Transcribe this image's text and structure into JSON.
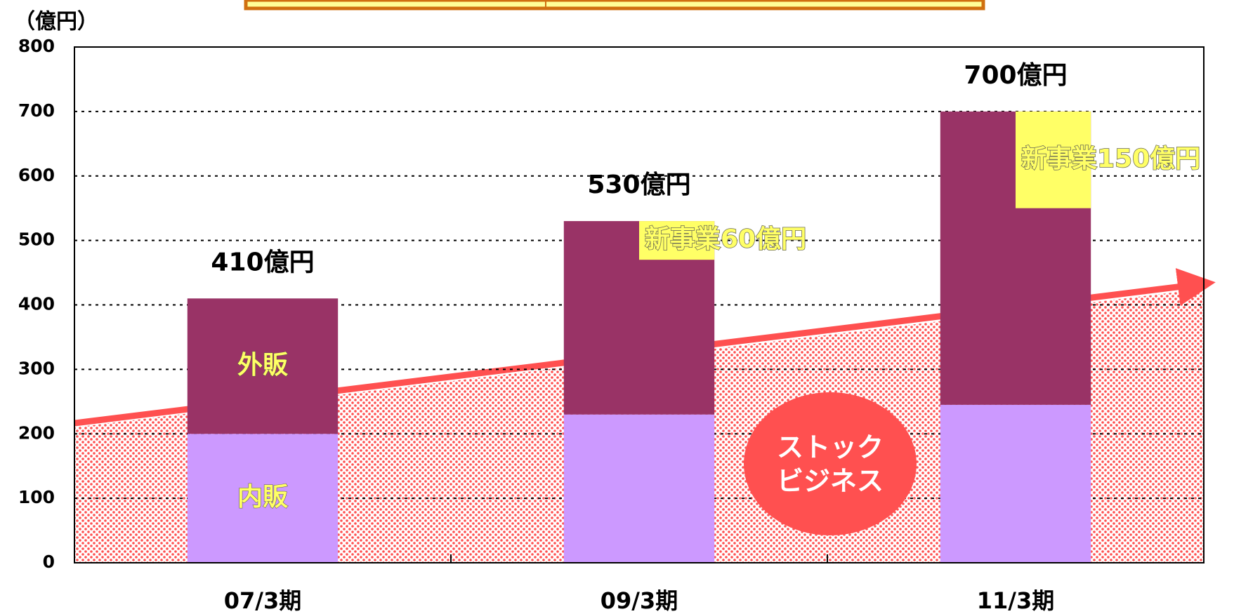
{
  "chart_data": {
    "type": "bar",
    "stacked": true,
    "ylabel": "（億円）",
    "categories": [
      "07/3期",
      "09/3期",
      "11/3期"
    ],
    "series": [
      {
        "name": "内販",
        "color": "#cc99ff",
        "values": [
          200,
          230,
          245
        ]
      },
      {
        "name": "外販",
        "color": "#993366",
        "values": [
          210,
          300,
          455
        ]
      }
    ],
    "new_business": {
      "color": "#ffff66",
      "values": [
        null,
        60,
        150
      ],
      "value_labels": [
        null,
        "新事業60億円",
        "新事業150億円"
      ]
    },
    "totals": {
      "values": [
        410,
        530,
        700
      ],
      "value_labels": [
        "410億円",
        "530億円",
        "700億円"
      ]
    },
    "stock": {
      "label": [
        "ストック",
        "ビジネス"
      ],
      "values": [
        210,
        425
      ],
      "color": "#ff5050"
    },
    "ylim": [
      0,
      800
    ],
    "yticks": [
      0,
      100,
      200,
      300,
      400,
      500,
      600,
      700,
      800
    ],
    "grid": true
  }
}
